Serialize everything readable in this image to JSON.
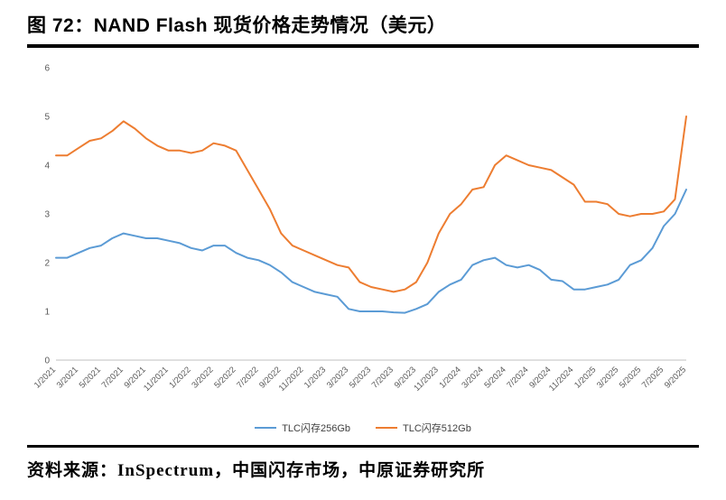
{
  "header": {
    "title": "图 72：NAND Flash 现货价格走势情况（美元）"
  },
  "footer": {
    "source": "资料来源：InSpectrum，中国闪存市场，中原证券研究所"
  },
  "chart_data": {
    "type": "line",
    "title": "NAND Flash 现货价格走势情况（美元）",
    "xlabel": "",
    "ylabel": "",
    "ylim": [
      0,
      6
    ],
    "yticks": [
      0,
      1,
      2,
      3,
      4,
      5,
      6
    ],
    "grid": false,
    "legend_position": "bottom-center",
    "axis_color": "#bfbfbf",
    "tick_color": "#595959",
    "x_labels": [
      "1/2021",
      "3/2021",
      "5/2021",
      "7/2021",
      "9/2021",
      "11/2021",
      "1/2022",
      "3/2022",
      "5/2022",
      "7/2022",
      "9/2022",
      "11/2022",
      "1/2023",
      "3/2023",
      "5/2023",
      "7/2023",
      "9/2023",
      "11/2023",
      "1/2024",
      "3/2024",
      "5/2024",
      "7/2024",
      "9/2024",
      "11/2024",
      "1/2025",
      "3/2025",
      "5/2025",
      "7/2025",
      "9/2025"
    ],
    "x_label_every_n_points": 2,
    "series": [
      {
        "name": "TLC闪存256Gb",
        "color": "#5B9BD5",
        "values": [
          2.1,
          2.1,
          2.2,
          2.3,
          2.35,
          2.5,
          2.6,
          2.55,
          2.5,
          2.5,
          2.45,
          2.4,
          2.3,
          2.25,
          2.35,
          2.35,
          2.2,
          2.1,
          2.05,
          1.95,
          1.8,
          1.6,
          1.5,
          1.4,
          1.35,
          1.3,
          1.05,
          1.0,
          1.0,
          1.0,
          0.98,
          0.97,
          1.05,
          1.15,
          1.4,
          1.55,
          1.65,
          1.95,
          2.05,
          2.1,
          1.95,
          1.9,
          1.95,
          1.85,
          1.65,
          1.62,
          1.45,
          1.45,
          1.5,
          1.55,
          1.65,
          1.95,
          2.05,
          2.3,
          2.75,
          3.0,
          3.5
        ]
      },
      {
        "name": "TLC闪存512Gb",
        "color": "#ED7D31",
        "values": [
          4.2,
          4.2,
          4.35,
          4.5,
          4.55,
          4.7,
          4.9,
          4.75,
          4.55,
          4.4,
          4.3,
          4.3,
          4.25,
          4.3,
          4.45,
          4.4,
          4.3,
          3.9,
          3.5,
          3.1,
          2.6,
          2.35,
          2.25,
          2.15,
          2.05,
          1.95,
          1.9,
          1.6,
          1.5,
          1.45,
          1.4,
          1.45,
          1.6,
          2.0,
          2.6,
          3.0,
          3.2,
          3.5,
          3.55,
          4.0,
          4.2,
          4.1,
          4.0,
          3.95,
          3.9,
          3.75,
          3.6,
          3.25,
          3.25,
          3.2,
          3.0,
          2.95,
          3.0,
          3.0,
          3.05,
          3.3,
          5.0
        ]
      }
    ]
  }
}
